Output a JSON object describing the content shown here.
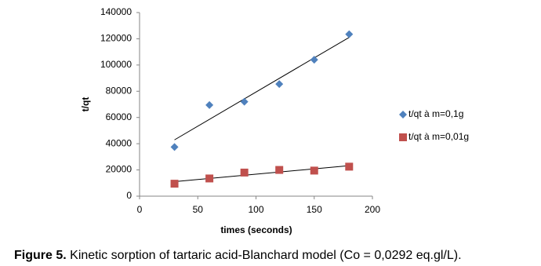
{
  "chart_data": {
    "type": "scatter",
    "x_label": "times (seconds)",
    "y_label": "t/qt",
    "xlim": [
      0,
      200
    ],
    "xticks": [
      0,
      50,
      100,
      150,
      200
    ],
    "ylim": [
      0,
      140000
    ],
    "yticks": [
      0,
      20000,
      40000,
      60000,
      80000,
      100000,
      120000,
      140000
    ],
    "grid": false,
    "trendline": true,
    "legend": "right",
    "series": [
      {
        "name": "t/qt à m=0,1g",
        "color": "#4f81bd",
        "marker": "diamond",
        "x": [
          30,
          60,
          90,
          120,
          150,
          180
        ],
        "values": [
          37500,
          69500,
          72000,
          85500,
          104000,
          123500
        ]
      },
      {
        "name": "t/qt à m=0,01g",
        "color": "#c0504d",
        "marker": "square",
        "x": [
          30,
          60,
          90,
          120,
          150,
          180
        ],
        "values": [
          9500,
          13500,
          18000,
          20000,
          19500,
          22500
        ]
      }
    ]
  },
  "caption": {
    "label": "Figure 5.",
    "text": "Kinetic sorption of tartaric acid-Blanchard model (Co = 0,0292 eq.gl/L)."
  }
}
